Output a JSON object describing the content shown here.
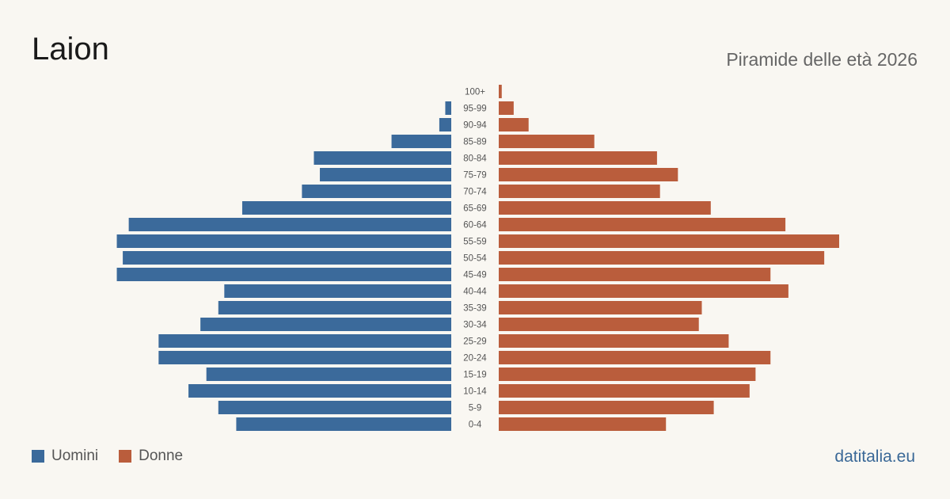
{
  "header": {
    "title": "Laion",
    "subtitle": "Piramide delle età 2026"
  },
  "legend": {
    "men_label": "Uomini",
    "women_label": "Donne"
  },
  "brand": "datitalia.eu",
  "colors": {
    "men": "#3b6a9b",
    "women": "#ba5d3c",
    "background": "#f9f7f2"
  },
  "chart_data": {
    "type": "bar",
    "orientation": "horizontal-pyramid",
    "categories": [
      "100+",
      "95-99",
      "90-94",
      "85-89",
      "80-84",
      "75-79",
      "70-74",
      "65-69",
      "60-64",
      "55-59",
      "50-54",
      "45-49",
      "40-44",
      "35-39",
      "30-34",
      "25-29",
      "20-24",
      "15-19",
      "10-14",
      "5-9",
      "0-4"
    ],
    "series": [
      {
        "name": "Uomini",
        "values": [
          0,
          1,
          2,
          10,
          23,
          22,
          25,
          35,
          54,
          56,
          55,
          56,
          38,
          39,
          42,
          49,
          49,
          41,
          44,
          39,
          36
        ]
      },
      {
        "name": "Donne",
        "values": [
          0.5,
          2.5,
          5,
          16,
          26.5,
          30,
          27,
          35.5,
          48,
          57,
          54.5,
          45.5,
          48.5,
          34,
          33.5,
          38.5,
          45.5,
          43,
          42,
          36,
          28
        ]
      }
    ],
    "xlim": [
      0,
      57
    ],
    "legend_position": "bottom-left",
    "grid": false
  }
}
